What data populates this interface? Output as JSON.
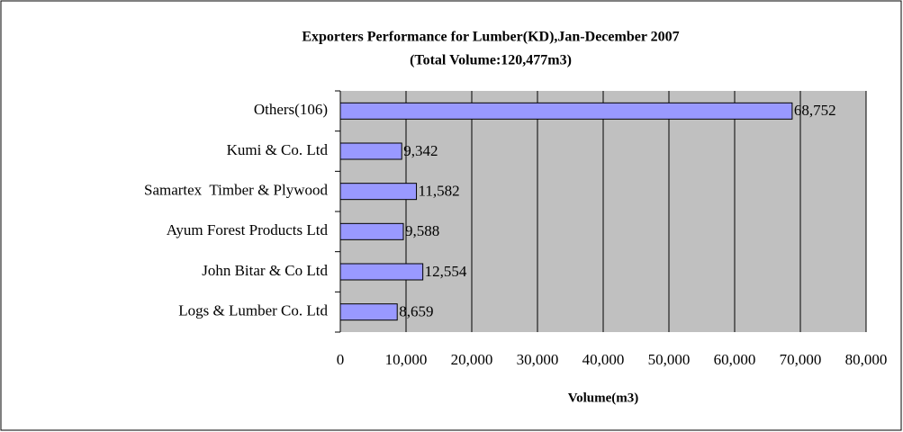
{
  "chart_data": {
    "type": "bar",
    "orientation": "horizontal",
    "title": "Exporters Performance for Lumber(KD),Jan-December 2007",
    "subtitle": "(Total Volume:120,477m3)",
    "x_label": "Volume(m3)",
    "categories": [
      "Others(106)",
      "Kumi & Co. Ltd",
      "Samartex  Timber & Plywood",
      "Ayum Forest Products Ltd",
      "John Bitar & Co Ltd",
      "Logs & Lumber Co. Ltd"
    ],
    "values": [
      68752,
      9342,
      11582,
      9588,
      12554,
      8659
    ],
    "value_labels": [
      "68,752",
      "9,342",
      "11,582",
      "9,588",
      "12,554",
      "8,659"
    ],
    "color": "#9999ff",
    "xlim": [
      0,
      80000
    ],
    "xticks": [
      0,
      {
        "value": 10000,
        "label": "10,000"
      },
      {
        "value": 20000,
        "label": "20,000"
      },
      {
        "value": 30000,
        "label": "30,000"
      },
      {
        "value": 40000,
        "label": "40,000"
      },
      {
        "value": 50000,
        "label": "50,000"
      },
      {
        "value": 60000,
        "label": "60,000"
      },
      {
        "value": 70000,
        "label": "70,000"
      },
      {
        "value": 80000,
        "label": "80,000"
      }
    ],
    "grid": true
  }
}
